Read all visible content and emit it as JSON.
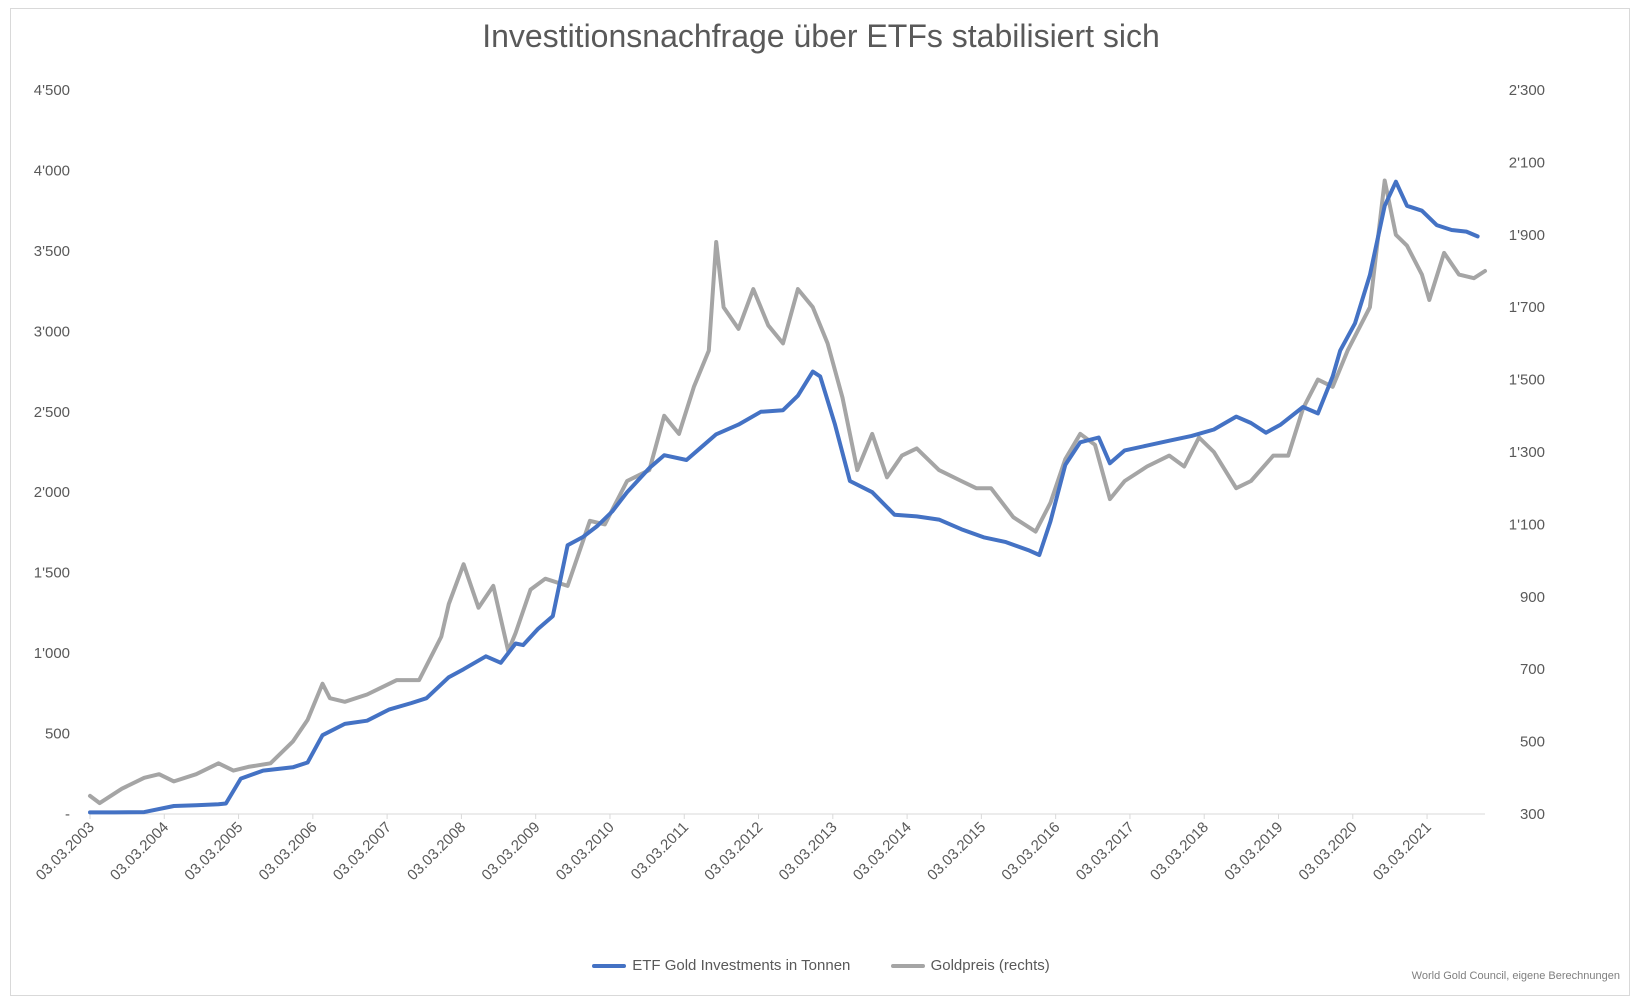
{
  "chart_data": {
    "type": "line",
    "title": "Investitionsnachfrage über ETFs stabilisiert sich",
    "source": "World Gold Council, eigene Berechnungen",
    "y_left": {
      "min": 0,
      "max": 4500,
      "ticks": [
        "-",
        "500",
        "1'000",
        "1'500",
        "2'000",
        "2'500",
        "3'000",
        "3'500",
        "4'000",
        "4'500"
      ]
    },
    "y_right": {
      "min": 300,
      "max": 2300,
      "ticks": [
        "300",
        "500",
        "700",
        "900",
        "1'100",
        "1'300",
        "1'500",
        "1'700",
        "1'900",
        "2'100",
        "2'300"
      ]
    },
    "x_range": [
      2003.17,
      2021.95
    ],
    "x_ticks": [
      "03.03.2003",
      "03.03.2004",
      "03.03.2005",
      "03.03.2006",
      "03.03.2007",
      "03.03.2008",
      "03.03.2009",
      "03.03.2010",
      "03.03.2011",
      "03.03.2012",
      "03.03.2013",
      "03.03.2014",
      "03.03.2015",
      "03.03.2016",
      "03.03.2017",
      "03.03.2018",
      "03.03.2019",
      "03.03.2020",
      "03.03.2021"
    ],
    "grid": false,
    "legend_position": "bottom",
    "series": [
      {
        "name": "ETF Gold Investments in Tonnen",
        "axis": "left",
        "color": "#4472c4",
        "x": [
          2003.17,
          2003.5,
          2003.9,
          2004.3,
          2004.6,
          2004.9,
          2005.0,
          2005.2,
          2005.5,
          2005.9,
          2006.1,
          2006.3,
          2006.6,
          2006.9,
          2007.2,
          2007.5,
          2007.7,
          2008.0,
          2008.2,
          2008.5,
          2008.7,
          2008.9,
          2009.0,
          2009.2,
          2009.4,
          2009.6,
          2009.8,
          2010.0,
          2010.2,
          2010.4,
          2010.7,
          2010.9,
          2011.2,
          2011.4,
          2011.6,
          2011.9,
          2012.2,
          2012.5,
          2012.7,
          2012.9,
          2013.0,
          2013.2,
          2013.4,
          2013.7,
          2014.0,
          2014.3,
          2014.6,
          2014.9,
          2015.2,
          2015.5,
          2015.8,
          2015.95,
          2016.1,
          2016.3,
          2016.5,
          2016.75,
          2016.9,
          2017.1,
          2017.4,
          2017.7,
          2018.0,
          2018.3,
          2018.6,
          2018.8,
          2019.0,
          2019.2,
          2019.5,
          2019.7,
          2019.9,
          2020.0,
          2020.2,
          2020.4,
          2020.6,
          2020.75,
          2020.9,
          2021.1,
          2021.3,
          2021.5,
          2021.7,
          2021.85
        ],
        "values": [
          10,
          10,
          12,
          50,
          55,
          60,
          65,
          220,
          270,
          290,
          320,
          490,
          560,
          580,
          650,
          690,
          720,
          850,
          900,
          980,
          940,
          1060,
          1050,
          1150,
          1230,
          1670,
          1720,
          1790,
          1880,
          2000,
          2150,
          2230,
          2200,
          2280,
          2360,
          2420,
          2500,
          2510,
          2600,
          2750,
          2720,
          2420,
          2070,
          2000,
          1860,
          1850,
          1830,
          1770,
          1720,
          1690,
          1640,
          1610,
          1820,
          2170,
          2310,
          2340,
          2180,
          2260,
          2290,
          2320,
          2350,
          2390,
          2470,
          2430,
          2370,
          2420,
          2530,
          2490,
          2720,
          2880,
          3050,
          3350,
          3780,
          3930,
          3780,
          3750,
          3660,
          3630,
          3620,
          3590
        ]
      },
      {
        "name": "Goldpreis (rechts)",
        "axis": "right",
        "color": "#a5a5a5",
        "x": [
          2003.17,
          2003.3,
          2003.6,
          2003.9,
          2004.1,
          2004.3,
          2004.6,
          2004.9,
          2005.1,
          2005.3,
          2005.6,
          2005.9,
          2006.1,
          2006.3,
          2006.4,
          2006.6,
          2006.9,
          2007.1,
          2007.3,
          2007.6,
          2007.9,
          2008.0,
          2008.2,
          2008.4,
          2008.6,
          2008.8,
          2008.9,
          2009.1,
          2009.3,
          2009.6,
          2009.9,
          2010.1,
          2010.4,
          2010.7,
          2010.9,
          2011.1,
          2011.3,
          2011.5,
          2011.6,
          2011.7,
          2011.9,
          2012.1,
          2012.3,
          2012.5,
          2012.7,
          2012.9,
          2013.1,
          2013.3,
          2013.5,
          2013.7,
          2013.9,
          2014.1,
          2014.3,
          2014.6,
          2014.9,
          2015.1,
          2015.3,
          2015.6,
          2015.9,
          2016.1,
          2016.3,
          2016.5,
          2016.7,
          2016.9,
          2017.1,
          2017.4,
          2017.7,
          2017.9,
          2018.1,
          2018.3,
          2018.6,
          2018.8,
          2019.1,
          2019.3,
          2019.5,
          2019.7,
          2019.9,
          2020.1,
          2020.2,
          2020.4,
          2020.6,
          2020.75,
          2020.9,
          2021.1,
          2021.2,
          2021.4,
          2021.6,
          2021.8,
          2021.95
        ],
        "values": [
          350,
          330,
          370,
          400,
          410,
          390,
          410,
          440,
          420,
          430,
          440,
          500,
          560,
          660,
          620,
          610,
          630,
          650,
          670,
          670,
          790,
          880,
          990,
          870,
          930,
          750,
          800,
          920,
          950,
          930,
          1110,
          1100,
          1220,
          1250,
          1400,
          1350,
          1480,
          1580,
          1880,
          1700,
          1640,
          1750,
          1650,
          1600,
          1750,
          1700,
          1600,
          1450,
          1250,
          1350,
          1230,
          1290,
          1310,
          1250,
          1220,
          1200,
          1200,
          1120,
          1080,
          1160,
          1280,
          1350,
          1320,
          1170,
          1220,
          1260,
          1290,
          1260,
          1340,
          1300,
          1200,
          1220,
          1290,
          1290,
          1420,
          1500,
          1480,
          1580,
          1620,
          1700,
          2050,
          1900,
          1870,
          1790,
          1720,
          1850,
          1790,
          1780,
          1800
        ]
      }
    ]
  }
}
